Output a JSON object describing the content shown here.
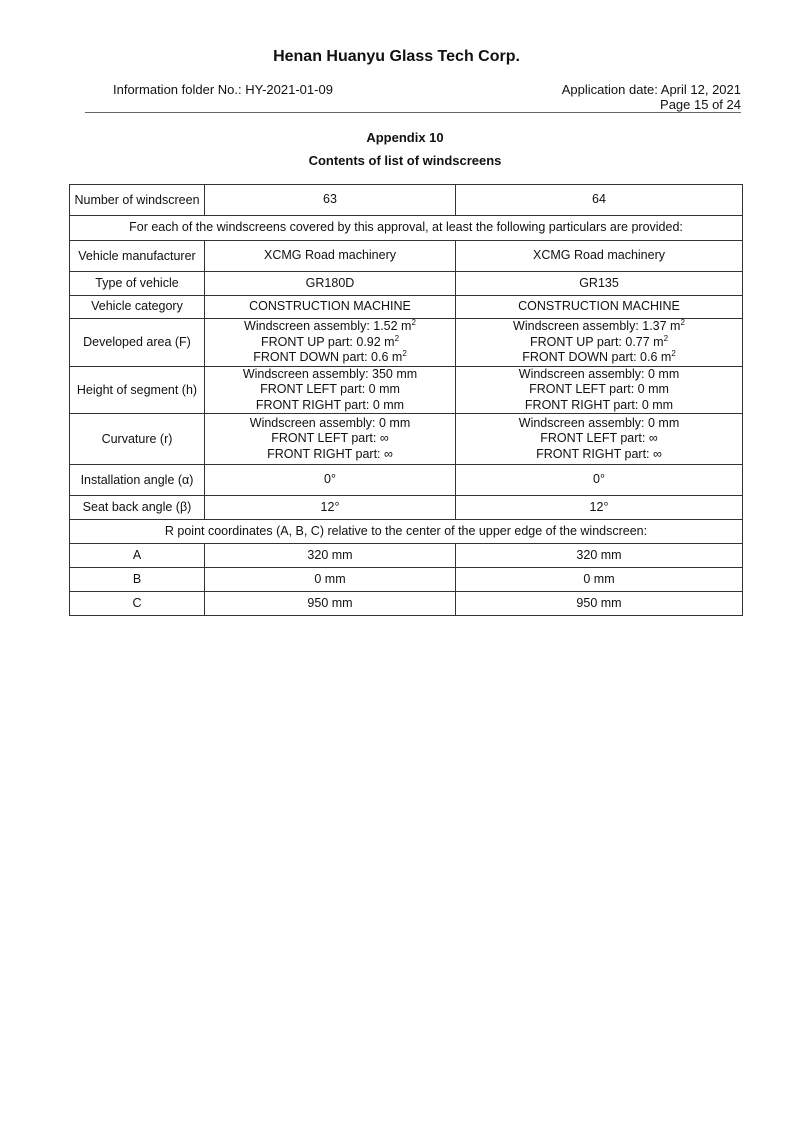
{
  "header": {
    "company": "Henan Huanyu Glass Tech Corp.",
    "folder": "Information folder No.: HY-2021-01-09",
    "date": "Application date: April 12, 2021",
    "page": "Page 15 of 24"
  },
  "appendix": "Appendix 10",
  "subtitle": "Contents of list of windscreens",
  "table": {
    "number_label": "Number of windscreen",
    "col1": "63",
    "col2": "64",
    "note": "For each of the windscreens covered by this approval, at least the following particulars are provided:",
    "rows": [
      {
        "label": "Vehicle manufacturer",
        "c1": [
          "XCMG Road machinery"
        ],
        "c2": [
          "XCMG Road machinery"
        ]
      },
      {
        "label": "Type of vehicle",
        "c1": [
          "GR180D"
        ],
        "c2": [
          "GR135"
        ]
      },
      {
        "label": "Vehicle category",
        "c1": [
          "CONSTRUCTION MACHINE"
        ],
        "c2": [
          "CONSTRUCTION MACHINE"
        ]
      },
      {
        "label": "Developed area (F)",
        "c1": [
          "Windscreen assembly: 1.52 m",
          "FRONT UP part: 0.92 m",
          "FRONT DOWN part: 0.6 m"
        ],
        "c2": [
          "Windscreen assembly: 1.37 m",
          "FRONT UP part: 0.77 m",
          "FRONT DOWN part: 0.6 m"
        ],
        "sup": "2"
      },
      {
        "label": "Height of segment (h)",
        "c1": [
          "Windscreen assembly: 350 mm",
          "FRONT LEFT part: 0 mm",
          "FRONT RIGHT part: 0 mm"
        ],
        "c2": [
          "Windscreen assembly: 0 mm",
          "FRONT LEFT part: 0 mm",
          "FRONT RIGHT part: 0 mm"
        ]
      },
      {
        "label": "Curvature (r)",
        "c1": [
          "Windscreen assembly: 0 mm",
          "FRONT LEFT part: ∞",
          "FRONT RIGHT part: ∞"
        ],
        "c2": [
          "Windscreen assembly: 0 mm",
          "FRONT LEFT part: ∞",
          "FRONT RIGHT part: ∞"
        ]
      },
      {
        "label": "Installation angle (α)",
        "c1": [
          "0°"
        ],
        "c2": [
          "0°"
        ]
      },
      {
        "label": "Seat back angle (β)",
        "c1": [
          "12°"
        ],
        "c2": [
          "12°"
        ]
      }
    ],
    "rpoint_note": "R point coordinates (A, B, C) relative to the center of the upper edge of the windscreen:",
    "coords": [
      {
        "label": "A",
        "c1": "320 mm",
        "c2": "320 mm"
      },
      {
        "label": "B",
        "c1": "0 mm",
        "c2": "0 mm"
      },
      {
        "label": "C",
        "c1": "950 mm",
        "c2": "950 mm"
      }
    ]
  }
}
